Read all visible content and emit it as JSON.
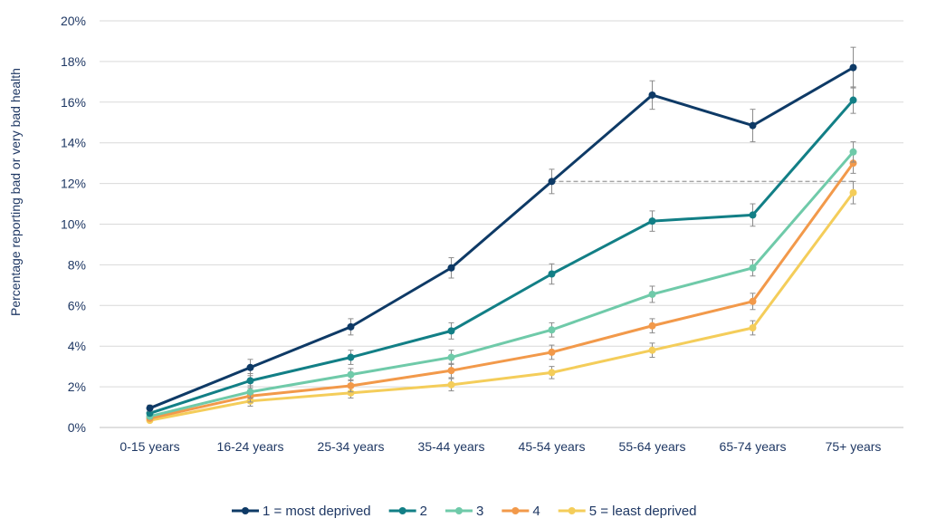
{
  "chart_data": {
    "type": "line",
    "title": "",
    "xlabel": "",
    "ylabel": "Percentage reporting bad or very bad health",
    "ylim": [
      0,
      20
    ],
    "y_ticks": [
      "0%",
      "2%",
      "4%",
      "6%",
      "8%",
      "10%",
      "12%",
      "14%",
      "16%",
      "18%",
      "20%"
    ],
    "grid": "horizontal",
    "legend_position": "bottom",
    "categories": [
      "0-15 years",
      "16-24 years",
      "25-34 years",
      "35-44 years",
      "45-54 years",
      "55-64 years",
      "65-74 years",
      "75+ years"
    ],
    "series": [
      {
        "name": "1 =  most deprived",
        "color": "#0e3a66",
        "values": [
          0.95,
          2.95,
          4.95,
          7.85,
          12.1,
          16.35,
          14.85,
          17.7
        ],
        "error": [
          0.15,
          0.4,
          0.4,
          0.5,
          0.6,
          0.7,
          0.8,
          1.0
        ]
      },
      {
        "name": "2",
        "color": "#127f86",
        "values": [
          0.7,
          2.3,
          3.45,
          4.75,
          7.55,
          10.15,
          10.45,
          16.1
        ],
        "error": [
          0.12,
          0.35,
          0.35,
          0.4,
          0.5,
          0.5,
          0.55,
          0.65
        ]
      },
      {
        "name": "3",
        "color": "#6fcaa9",
        "values": [
          0.55,
          1.75,
          2.6,
          3.45,
          4.8,
          6.55,
          7.85,
          13.55
        ],
        "error": [
          0.12,
          0.3,
          0.3,
          0.35,
          0.35,
          0.4,
          0.4,
          0.5
        ]
      },
      {
        "name": "4",
        "color": "#f2994a",
        "values": [
          0.45,
          1.55,
          2.05,
          2.8,
          3.7,
          5.0,
          6.2,
          13.0
        ],
        "error": [
          0.1,
          0.3,
          0.3,
          0.35,
          0.35,
          0.35,
          0.4,
          0.5
        ]
      },
      {
        "name": "5 = least deprived",
        "color": "#f4cd5a",
        "values": [
          0.35,
          1.3,
          1.7,
          2.1,
          2.7,
          3.8,
          4.9,
          11.55
        ],
        "error": [
          0.1,
          0.25,
          0.25,
          0.3,
          0.3,
          0.35,
          0.35,
          0.55
        ]
      }
    ],
    "reference_line": {
      "value": 12.1,
      "from_category": "45-54 years",
      "to_category": "75+ years",
      "style": "dashed",
      "color": "#a6a6a6"
    },
    "error_bar_color": "#8c8c8c"
  }
}
